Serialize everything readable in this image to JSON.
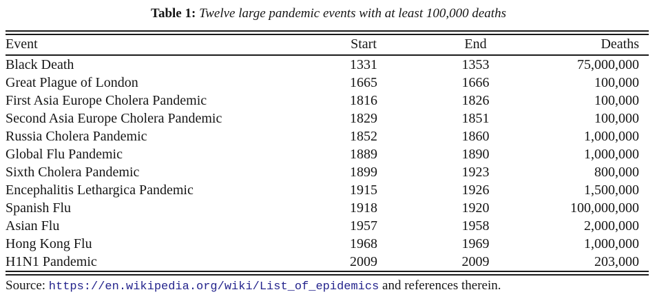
{
  "caption": {
    "label": "Table 1:",
    "text": "Twelve large pandemic events with at least 100,000 deaths"
  },
  "table": {
    "columns": [
      "Event",
      "Start",
      "End",
      "Deaths"
    ],
    "rows": [
      {
        "event": "Black Death",
        "start": "1331",
        "end": "1353",
        "deaths": "75,000,000"
      },
      {
        "event": "Great Plague of London",
        "start": "1665",
        "end": "1666",
        "deaths": "100,000"
      },
      {
        "event": "First Asia Europe Cholera Pandemic",
        "start": "1816",
        "end": "1826",
        "deaths": "100,000"
      },
      {
        "event": "Second Asia Europe Cholera Pandemic",
        "start": "1829",
        "end": "1851",
        "deaths": "100,000"
      },
      {
        "event": "Russia Cholera Pandemic",
        "start": "1852",
        "end": "1860",
        "deaths": "1,000,000"
      },
      {
        "event": "Global Flu Pandemic",
        "start": "1889",
        "end": "1890",
        "deaths": "1,000,000"
      },
      {
        "event": "Sixth Cholera Pandemic",
        "start": "1899",
        "end": "1923",
        "deaths": "800,000"
      },
      {
        "event": "Encephalitis Lethargica Pandemic",
        "start": "1915",
        "end": "1926",
        "deaths": "1,500,000"
      },
      {
        "event": "Spanish Flu",
        "start": "1918",
        "end": "1920",
        "deaths": "100,000,000"
      },
      {
        "event": "Asian Flu",
        "start": "1957",
        "end": "1958",
        "deaths": "2,000,000"
      },
      {
        "event": "Hong Kong Flu",
        "start": "1968",
        "end": "1969",
        "deaths": "1,000,000"
      },
      {
        "event": "H1N1 Pandemic",
        "start": "2009",
        "end": "2009",
        "deaths": "203,000"
      }
    ]
  },
  "source": {
    "prefix": "Source: ",
    "url": "https://en.wikipedia.org/wiki/List_of_epidemics",
    "suffix": " and references therein."
  },
  "colors": {
    "text": "#151515",
    "rule": "#1a1a1a",
    "link": "#23238c"
  }
}
